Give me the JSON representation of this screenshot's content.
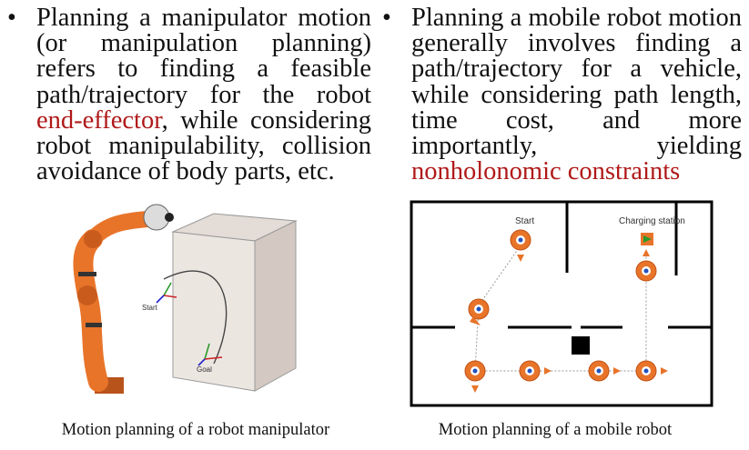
{
  "left": {
    "bullet": "•",
    "text_before": "Planning a manipulator motion (or manipulation planning) refers to finding a feasible path/trajectory for the robot ",
    "highlight": "end-effector",
    "text_after": ", while considering robot manipulability, collision avoidance of body parts, etc."
  },
  "right": {
    "bullet": "•",
    "text_before": "Planning a mobile robot motion generally involves finding a path/trajectory for a vehicle, while considering path length, time cost, and more importantly, yielding ",
    "highlight": "nonholonomic constraints",
    "text_after": ""
  },
  "figure_left": {
    "start_label": "Start",
    "goal_label": "Goal",
    "caption": "Motion planning of a robot manipulator"
  },
  "figure_right": {
    "start_label": "Start",
    "station_label": "Charging station",
    "caption": "Motion planning of a mobile robot"
  },
  "colors": {
    "highlight": "#b01919",
    "robot_orange": "#e8742a",
    "wall": "#000000"
  }
}
